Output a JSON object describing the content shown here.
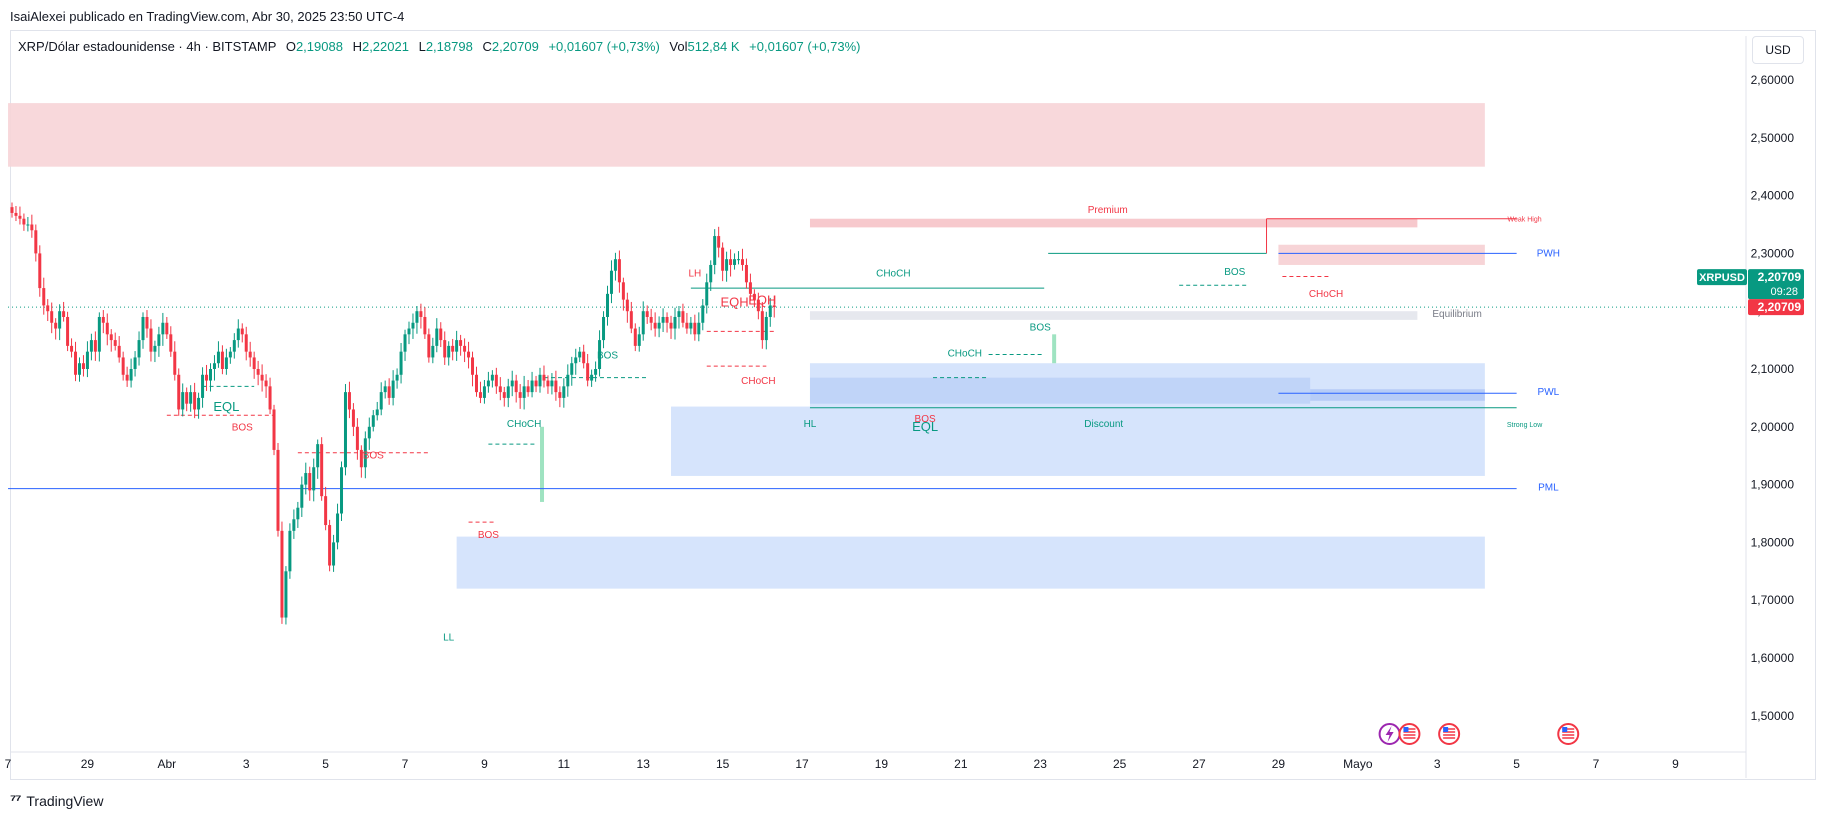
{
  "header": {
    "published_line": "IsaiAlexei publicado en TradingView.com, Abr 30, 2025 23:50 UTC-4"
  },
  "legend": {
    "symbol": "XRP/Dólar estadounidense · 4h · BITSTAMP",
    "o_label": "O",
    "o_value": "2,19088",
    "h_label": "H",
    "h_value": "2,22021",
    "l_label": "L",
    "l_value": "2,18798",
    "c_label": "C",
    "c_value": "2,20709",
    "change": "+0,01607 (+0,73%)",
    "vol_label": "Vol",
    "vol_value": "512,84 K",
    "vol_change": "+0,01607 (+0,73%)"
  },
  "currency_button": "USD",
  "footer": {
    "brand": "TradingView"
  },
  "colors": {
    "up": "#089981",
    "down": "#f23645",
    "bull_zone": "#d6e4fc",
    "bear_zone": "#f7d4d7",
    "weekly": "#2962ff"
  },
  "chart_data": {
    "type": "candlestick",
    "symbol": "XRPUSD",
    "timeframe": "4h",
    "ylim": [
      1.45,
      2.64
    ],
    "y_ticks": [
      "2,60000",
      "2,50000",
      "2,40000",
      "2,30000",
      "2,20000",
      "2,10000",
      "2,00000",
      "1,90000",
      "1,80000",
      "1,70000",
      "1,60000",
      "1,50000"
    ],
    "y_tick_values": [
      2.6,
      2.5,
      2.4,
      2.3,
      2.2,
      2.1,
      2.0,
      1.9,
      1.8,
      1.7,
      1.6,
      1.5
    ],
    "x_ticks": [
      {
        "label": "7",
        "t": -1
      },
      {
        "label": "29",
        "t": 19
      },
      {
        "label": "Abr",
        "t": 39
      },
      {
        "label": "3",
        "t": 59
      },
      {
        "label": "5",
        "t": 79
      },
      {
        "label": "7",
        "t": 99
      },
      {
        "label": "9",
        "t": 119
      },
      {
        "label": "11",
        "t": 139
      },
      {
        "label": "13",
        "t": 159
      },
      {
        "label": "15",
        "t": 179
      },
      {
        "label": "17",
        "t": 199
      },
      {
        "label": "19",
        "t": 219
      },
      {
        "label": "21",
        "t": 239
      },
      {
        "label": "23",
        "t": 259
      },
      {
        "label": "25",
        "t": 279
      },
      {
        "label": "27",
        "t": 299
      },
      {
        "label": "29",
        "t": 319
      },
      {
        "label": "Mayo",
        "t": 339
      },
      {
        "label": "3",
        "t": 359
      },
      {
        "label": "5",
        "t": 379
      },
      {
        "label": "7",
        "t": 399
      },
      {
        "label": "9",
        "t": 419
      }
    ],
    "price_badge": {
      "symbol": "XRPUSD",
      "price": "2,20709",
      "countdown": "09:28",
      "last": "2,20709",
      "value": 2.20709
    },
    "closes": [
      2.37,
      2.365,
      2.36,
      2.35,
      2.35,
      2.34,
      2.3,
      2.24,
      2.21,
      2.2,
      2.18,
      2.17,
      2.2,
      2.19,
      2.14,
      2.13,
      2.09,
      2.11,
      2.1,
      2.13,
      2.15,
      2.13,
      2.19,
      2.18,
      2.16,
      2.15,
      2.14,
      2.12,
      2.09,
      2.08,
      2.1,
      2.12,
      2.15,
      2.19,
      2.17,
      2.13,
      2.14,
      2.16,
      2.18,
      2.16,
      2.13,
      2.09,
      2.03,
      2.06,
      2.04,
      2.06,
      2.03,
      2.05,
      2.09,
      2.08,
      2.1,
      2.11,
      2.13,
      2.1,
      2.12,
      2.13,
      2.15,
      2.17,
      2.16,
      2.13,
      2.12,
      2.1,
      2.09,
      2.08,
      2.07,
      2.03,
      1.96,
      1.82,
      1.67,
      1.75,
      1.82,
      1.84,
      1.86,
      1.9,
      1.92,
      1.89,
      1.93,
      1.97,
      1.88,
      1.83,
      1.76,
      1.8,
      1.85,
      1.93,
      2.06,
      2.03,
      2.0,
      1.96,
      1.93,
      1.98,
      2.0,
      2.02,
      2.03,
      2.06,
      2.07,
      2.05,
      2.08,
      2.09,
      2.13,
      2.16,
      2.17,
      2.18,
      2.2,
      2.19,
      2.16,
      2.12,
      2.14,
      2.17,
      2.15,
      2.12,
      2.14,
      2.13,
      2.15,
      2.14,
      2.13,
      2.12,
      2.09,
      2.06,
      2.05,
      2.07,
      2.08,
      2.09,
      2.07,
      2.06,
      2.05,
      2.07,
      2.08,
      2.06,
      2.05,
      2.07,
      2.06,
      2.08,
      2.07,
      2.09,
      2.08,
      2.07,
      2.08,
      2.06,
      2.05,
      2.07,
      2.09,
      2.11,
      2.12,
      2.13,
      2.11,
      2.08,
      2.09,
      2.1,
      2.15,
      2.19,
      2.23,
      2.27,
      2.29,
      2.25,
      2.22,
      2.2,
      2.17,
      2.14,
      2.16,
      2.2,
      2.19,
      2.18,
      2.17,
      2.18,
      2.19,
      2.18,
      2.17,
      2.19,
      2.2,
      2.18,
      2.17,
      2.18,
      2.16,
      2.18,
      2.21,
      2.25,
      2.28,
      2.33,
      2.31,
      2.27,
      2.29,
      2.28,
      2.29,
      2.29,
      2.28,
      2.25,
      2.23,
      2.22,
      2.2,
      2.15,
      2.19,
      2.21,
      2.20709
    ],
    "structure_labels": [
      {
        "text": "EQL",
        "t": 54,
        "y": 2.027,
        "color": "#089981",
        "size": 13
      },
      {
        "text": "BOS",
        "t": 58,
        "y": 1.994,
        "color": "#f23645",
        "size": 10
      },
      {
        "text": "BOS",
        "t": 91,
        "y": 1.945,
        "color": "#f23645",
        "size": 10
      },
      {
        "text": "BOS",
        "t": 120,
        "y": 1.808,
        "color": "#f23645",
        "size": 10
      },
      {
        "text": "LL",
        "t": 110,
        "y": 1.63,
        "color": "#089981",
        "size": 10
      },
      {
        "text": "CHoCH",
        "t": 129,
        "y": 2.0,
        "color": "#089981",
        "size": 10
      },
      {
        "text": "BOS",
        "t": 150,
        "y": 2.118,
        "color": "#089981",
        "size": 10
      },
      {
        "text": "LH",
        "t": 172,
        "y": 2.26,
        "color": "#f23645",
        "size": 10
      },
      {
        "text": "EQH",
        "t": 182,
        "y": 2.208,
        "color": "#f23645",
        "size": 13
      },
      {
        "text": "EQH",
        "t": 189,
        "y": 2.212,
        "color": "#f23645",
        "size": 13
      },
      {
        "text": "CHoCH",
        "t": 188,
        "y": 2.074,
        "color": "#f23645",
        "size": 10
      },
      {
        "text": "CHoCH",
        "t": 222,
        "y": 2.26,
        "color": "#089981",
        "size": 10
      },
      {
        "text": "HL",
        "t": 201,
        "y": 2.0,
        "color": "#089981",
        "size": 10
      },
      {
        "text": "BOS",
        "t": 230,
        "y": 2.008,
        "color": "#f23645",
        "size": 10
      },
      {
        "text": "EQL",
        "t": 230,
        "y": 1.993,
        "color": "#089981",
        "size": 13
      },
      {
        "text": "CHoCH",
        "t": 240,
        "y": 2.122,
        "color": "#089981",
        "size": 10
      },
      {
        "text": "BOS",
        "t": 259,
        "y": 2.167,
        "color": "#089981",
        "size": 10
      },
      {
        "text": "Premium",
        "t": 276,
        "y": 2.37,
        "color": "#f23645",
        "size": 10
      },
      {
        "text": "Discount",
        "t": 275,
        "y": 2.0,
        "color": "#089981",
        "size": 10
      },
      {
        "text": "BOS",
        "t": 308,
        "y": 2.263,
        "color": "#089981",
        "size": 10
      },
      {
        "text": "CHoCH",
        "t": 331,
        "y": 2.225,
        "color": "#f23645",
        "size": 10
      },
      {
        "text": "Equilibrium",
        "t": 364,
        "y": 2.19,
        "color": "#787b86",
        "size": 10
      },
      {
        "text": "Weak High",
        "t": 381,
        "y": 2.355,
        "color": "#f23645",
        "size": 7
      },
      {
        "text": "PWH",
        "t": 387,
        "y": 2.295,
        "color": "#2962ff",
        "size": 10
      },
      {
        "text": "PWL",
        "t": 387,
        "y": 2.055,
        "color": "#2962ff",
        "size": 10
      },
      {
        "text": "Strong Low",
        "t": 381,
        "y": 2.0,
        "color": "#089981",
        "size": 7
      },
      {
        "text": "PML",
        "t": 387,
        "y": 1.89,
        "color": "#2962ff",
        "size": 10
      }
    ],
    "event_icons": [
      {
        "name": "flash-icon",
        "t": 347,
        "color": "#9c27b0"
      },
      {
        "name": "us-flag-icon",
        "t": 352,
        "color": "#f23645"
      },
      {
        "name": "us-flag-icon",
        "t": 362,
        "color": "#f23645"
      },
      {
        "name": "us-flag-icon",
        "t": 392,
        "color": "#f23645"
      }
    ],
    "grid": false
  }
}
